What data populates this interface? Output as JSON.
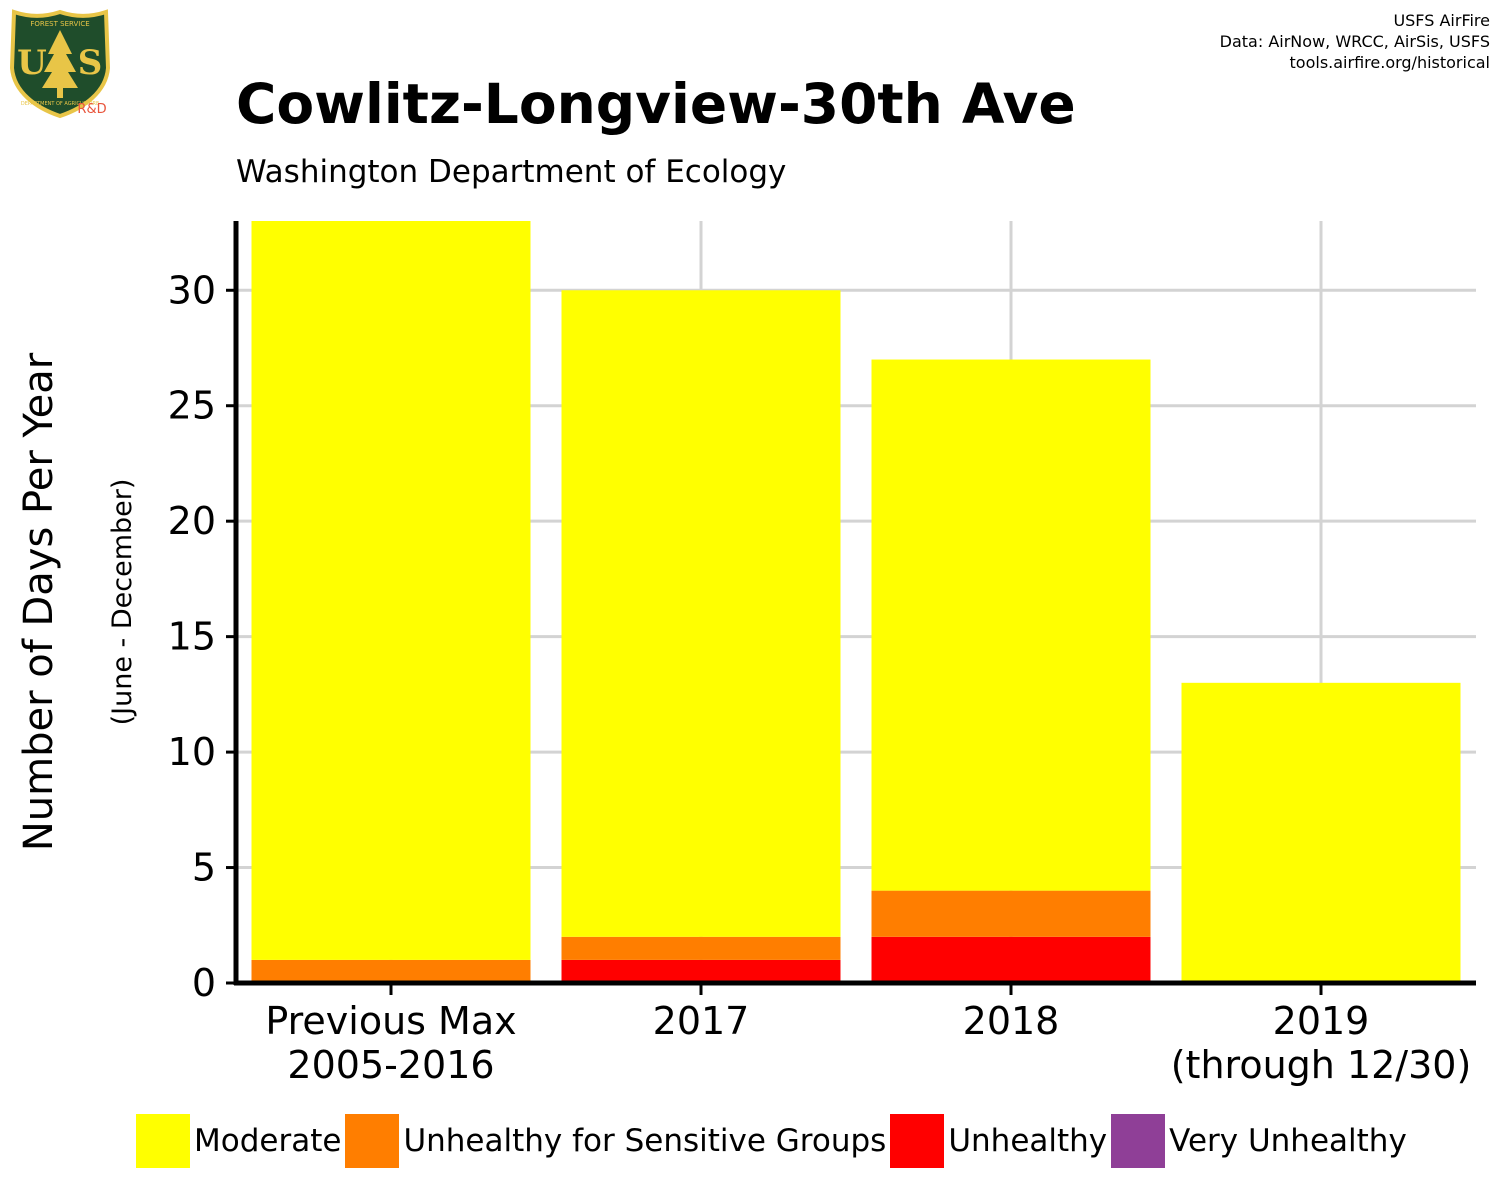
{
  "logo": {
    "top_text": "FOREST SERVICE",
    "initials_left": "U",
    "initials_right": "S",
    "bottom_text": "DEPARTMENT OF AGRICULTURE",
    "suffix": "R&D",
    "colors": {
      "shield": "#1f4d2b",
      "border": "#e8c547",
      "tree": "#e8c547",
      "suffix": "#e8553c"
    }
  },
  "credits": [
    "USFS AirFire",
    "Data: AirNow, WRCC, AirSis, USFS",
    "tools.airfire.org/historical"
  ],
  "chart_data": {
    "type": "bar",
    "stacked": true,
    "title": "Cowlitz-Longview-30th Ave",
    "subtitle": "Washington Department of Ecology",
    "ylabel": "Number of Days Per Year",
    "ylabel_sub": "(June - December)",
    "xlabel": "",
    "categories": [
      [
        "Previous Max",
        "2005-2016"
      ],
      [
        "2017"
      ],
      [
        "2018"
      ],
      [
        "2019",
        "(through 12/30)"
      ]
    ],
    "ylim": [
      0,
      33
    ],
    "yticks": [
      0,
      5,
      10,
      15,
      20,
      25,
      30
    ],
    "grid": true,
    "legend_position": "bottom",
    "series": [
      {
        "name": "Unhealthy",
        "color": "#ff0000",
        "values": [
          0,
          1,
          2,
          0
        ]
      },
      {
        "name": "Unhealthy for Sensitive Groups",
        "color": "#ff7e00",
        "values": [
          1,
          1,
          2,
          0
        ]
      },
      {
        "name": "Moderate",
        "color": "#ffff00",
        "values": [
          32,
          28,
          23,
          13
        ]
      },
      {
        "name": "Very Unhealthy",
        "color": "#8f3f97",
        "values": [
          0,
          0,
          0,
          0
        ]
      }
    ],
    "legend_order": [
      "Moderate",
      "Unhealthy for Sensitive Groups",
      "Unhealthy",
      "Very Unhealthy"
    ]
  }
}
